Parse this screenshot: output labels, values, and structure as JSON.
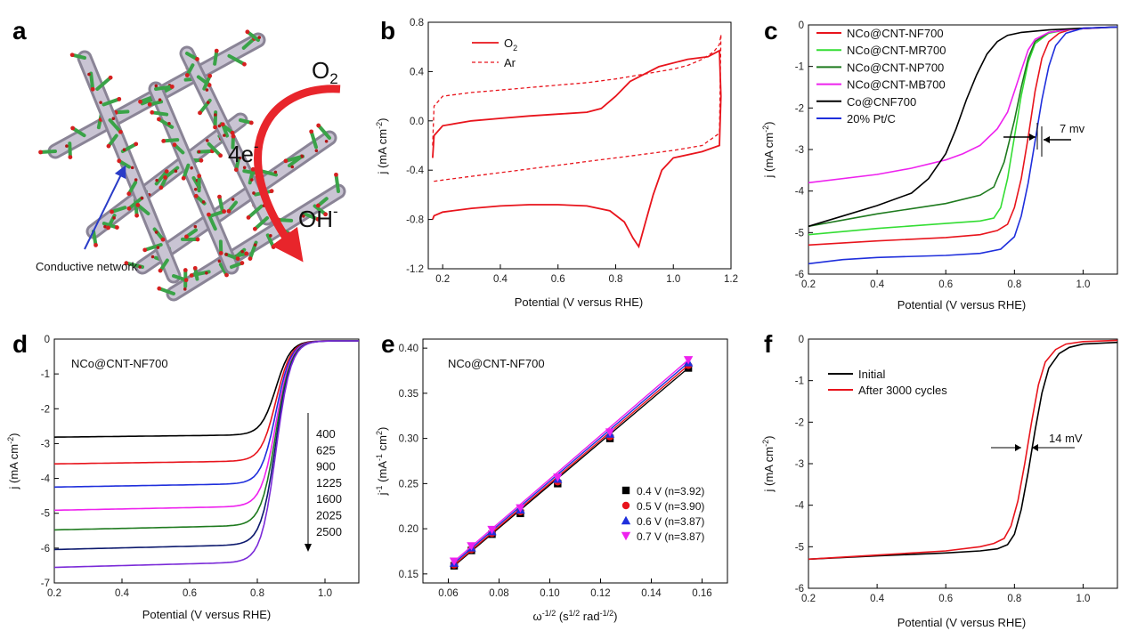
{
  "schematic": {
    "letter": "a",
    "o2_label": "O",
    "o2_sub": "2",
    "electrons_label": "4e",
    "electrons_sup": "-",
    "product_label": "OH",
    "product_sup": "-",
    "network_label": "Conductive network"
  },
  "chart_data": [
    {
      "panel": "b",
      "type": "line",
      "xlabel": "Potential (V versus RHE)",
      "ylabel": "j (mA cm",
      "ylabel_sup": "-2",
      "ylabel_end": ")",
      "xlim": [
        0.15,
        1.2
      ],
      "ylim": [
        -1.2,
        0.8
      ],
      "xticks": [
        0.2,
        0.4,
        0.6,
        0.8,
        1.0,
        1.2
      ],
      "xtick_labels": [
        "0.2",
        "0.4",
        "0.6",
        "0.8",
        "1.0",
        "1.2"
      ],
      "yticks": [
        -1.2,
        -0.8,
        -0.4,
        0.0,
        0.4,
        0.8
      ],
      "ytick_labels": [
        "-1.2",
        "-0.8",
        "-0.4",
        "0.0",
        "0.4",
        "0.8"
      ],
      "legend_position": "top-left",
      "series": [
        {
          "name": "O",
          "name_sub": "2",
          "color": "#e8141c",
          "style": "solid",
          "x": [
            0.165,
            0.17,
            0.2,
            0.3,
            0.4,
            0.5,
            0.6,
            0.7,
            0.75,
            0.8,
            0.85,
            0.95,
            1.05,
            1.12,
            1.16,
            1.165,
            1.16,
            1.1,
            1.0,
            0.96,
            0.93,
            0.9,
            0.88,
            0.86,
            0.83,
            0.78,
            0.7,
            0.6,
            0.5,
            0.4,
            0.3,
            0.2,
            0.17,
            0.165
          ],
          "y": [
            -0.3,
            -0.12,
            -0.04,
            0.0,
            0.02,
            0.04,
            0.055,
            0.07,
            0.1,
            0.2,
            0.32,
            0.44,
            0.5,
            0.52,
            0.57,
            0.2,
            -0.2,
            -0.25,
            -0.3,
            -0.4,
            -0.6,
            -0.85,
            -1.02,
            -0.95,
            -0.82,
            -0.73,
            -0.69,
            -0.68,
            -0.68,
            -0.69,
            -0.71,
            -0.74,
            -0.77,
            -0.8
          ]
        },
        {
          "name": "Ar",
          "color": "#e8141c",
          "style": "dashed",
          "x": [
            0.165,
            0.17,
            0.2,
            0.3,
            0.4,
            0.5,
            0.6,
            0.7,
            0.8,
            0.9,
            1.0,
            1.05,
            1.1,
            1.14,
            1.16,
            1.165,
            1.16,
            1.1,
            1.0,
            0.9,
            0.8,
            0.7,
            0.6,
            0.5,
            0.4,
            0.3,
            0.2,
            0.17,
            0.165
          ],
          "y": [
            -0.2,
            0.12,
            0.2,
            0.23,
            0.25,
            0.27,
            0.29,
            0.31,
            0.34,
            0.38,
            0.42,
            0.45,
            0.5,
            0.56,
            0.62,
            0.7,
            -0.1,
            -0.2,
            -0.24,
            -0.27,
            -0.3,
            -0.33,
            -0.36,
            -0.39,
            -0.42,
            -0.45,
            -0.48,
            -0.49,
            -0.5
          ]
        }
      ]
    },
    {
      "panel": "c",
      "type": "line",
      "xlabel": "Potential (V versus RHE)",
      "ylabel": "j (mA cm",
      "ylabel_sup": "-2",
      "ylabel_end": ")",
      "xlim": [
        0.2,
        1.1
      ],
      "ylim": [
        -6,
        0
      ],
      "xticks": [
        0.2,
        0.4,
        0.6,
        0.8,
        1.0
      ],
      "xtick_labels": [
        "0.2",
        "0.4",
        "0.6",
        "0.8",
        "1.0"
      ],
      "yticks": [
        -6,
        -5,
        -4,
        -3,
        -2,
        -1,
        0
      ],
      "ytick_labels": [
        "-6",
        "-5",
        "-4",
        "-3",
        "-2",
        "-1",
        "0"
      ],
      "legend_position": "top-left",
      "annotation": "7 mv",
      "series": [
        {
          "name": "NCo@CNT-NF700",
          "color": "#e8141c",
          "x": [
            0.2,
            0.4,
            0.6,
            0.7,
            0.75,
            0.78,
            0.8,
            0.82,
            0.84,
            0.86,
            0.88,
            0.9,
            0.93,
            0.96,
            1.0,
            1.1
          ],
          "y": [
            -5.3,
            -5.2,
            -5.12,
            -5.05,
            -4.95,
            -4.8,
            -4.4,
            -3.7,
            -2.7,
            -1.6,
            -0.8,
            -0.4,
            -0.2,
            -0.12,
            -0.08,
            -0.05
          ]
        },
        {
          "name": "NCo@CNT-MR700",
          "color": "#33dd33",
          "x": [
            0.2,
            0.4,
            0.6,
            0.7,
            0.74,
            0.76,
            0.78,
            0.8,
            0.82,
            0.84,
            0.86,
            0.9,
            0.95,
            1.0,
            1.1
          ],
          "y": [
            -5.05,
            -4.9,
            -4.78,
            -4.72,
            -4.65,
            -4.4,
            -3.7,
            -2.7,
            -1.7,
            -0.9,
            -0.45,
            -0.2,
            -0.12,
            -0.09,
            -0.05
          ]
        },
        {
          "name": "NCo@CNT-NP700",
          "color": "#1e7a1e",
          "x": [
            0.2,
            0.4,
            0.6,
            0.7,
            0.74,
            0.77,
            0.8,
            0.82,
            0.84,
            0.86,
            0.9,
            0.95,
            1.0,
            1.1
          ],
          "y": [
            -4.85,
            -4.55,
            -4.3,
            -4.1,
            -3.9,
            -3.3,
            -2.3,
            -1.5,
            -0.8,
            -0.4,
            -0.18,
            -0.12,
            -0.09,
            -0.05
          ]
        },
        {
          "name": "NCo@CNT-MB700",
          "color": "#ee22ee",
          "x": [
            0.2,
            0.4,
            0.5,
            0.6,
            0.65,
            0.7,
            0.75,
            0.78,
            0.8,
            0.82,
            0.84,
            0.86,
            0.9,
            0.95,
            1.0,
            1.1
          ],
          "y": [
            -3.8,
            -3.6,
            -3.45,
            -3.25,
            -3.1,
            -2.9,
            -2.5,
            -2.1,
            -1.6,
            -1.1,
            -0.6,
            -0.35,
            -0.18,
            -0.12,
            -0.09,
            -0.05
          ]
        },
        {
          "name": "Co@CNF700",
          "color": "#000000",
          "x": [
            0.2,
            0.3,
            0.4,
            0.5,
            0.55,
            0.6,
            0.63,
            0.66,
            0.69,
            0.72,
            0.75,
            0.78,
            0.82,
            0.9,
            1.0,
            1.1
          ],
          "y": [
            -4.85,
            -4.6,
            -4.35,
            -4.05,
            -3.7,
            -3.1,
            -2.5,
            -1.8,
            -1.2,
            -0.7,
            -0.4,
            -0.25,
            -0.18,
            -0.12,
            -0.08,
            -0.05
          ]
        },
        {
          "name": "20% Pt/C",
          "color": "#1f2fdc",
          "x": [
            0.2,
            0.3,
            0.4,
            0.6,
            0.7,
            0.76,
            0.8,
            0.82,
            0.84,
            0.86,
            0.88,
            0.9,
            0.92,
            0.95,
            1.0,
            1.1
          ],
          "y": [
            -5.75,
            -5.65,
            -5.6,
            -5.55,
            -5.5,
            -5.4,
            -5.1,
            -4.6,
            -3.8,
            -2.8,
            -1.8,
            -1.0,
            -0.5,
            -0.2,
            -0.08,
            -0.05
          ]
        }
      ]
    },
    {
      "panel": "d",
      "type": "line",
      "xlabel": "Potential (V versus RHE)",
      "ylabel": "j (mA cm",
      "ylabel_sup": "-2",
      "ylabel_end": ")",
      "xlim": [
        0.2,
        1.1
      ],
      "ylim": [
        -7,
        0
      ],
      "xticks": [
        0.2,
        0.4,
        0.6,
        0.8,
        1.0
      ],
      "xtick_labels": [
        "0.2",
        "0.4",
        "0.6",
        "0.8",
        "1.0"
      ],
      "yticks": [
        -7,
        -6,
        -5,
        -4,
        -3,
        -2,
        -1,
        0
      ],
      "ytick_labels": [
        "-7",
        "-6",
        "-5",
        "-4",
        "-3",
        "-2",
        "-1",
        "0"
      ],
      "inset_title": "NCo@CNT-NF700",
      "rpm_labels": [
        "400",
        "625",
        "900",
        "1225",
        "1600",
        "2025",
        "2500"
      ],
      "series": [
        {
          "name": "400",
          "color": "#000000",
          "limit": -2.7
        },
        {
          "name": "625",
          "color": "#e8141c",
          "limit": -3.45
        },
        {
          "name": "900",
          "color": "#1f2fdc",
          "limit": -4.1
        },
        {
          "name": "1225",
          "color": "#ee22ee",
          "limit": -4.75
        },
        {
          "name": "1600",
          "color": "#1e7a1e",
          "limit": -5.3
        },
        {
          "name": "2025",
          "color": "#0d1a6e",
          "limit": -5.85
        },
        {
          "name": "2500",
          "color": "#7a2ad8",
          "limit": -6.35
        }
      ]
    },
    {
      "panel": "e",
      "type": "scatter",
      "xlabel": "ω",
      "xlabel_sup": "-1/2",
      "xlabel_mid": " (s",
      "xlabel_sup2": "1/2",
      "xlabel_mid2": " rad",
      "xlabel_sup3": "-1/2",
      "xlabel_end": ")",
      "ylabel": "j",
      "ylabel_sup": "-1",
      "ylabel_mid": " (mA",
      "ylabel_sup2": "-1",
      "ylabel_mid2": " cm",
      "ylabel_sup3": "2",
      "ylabel_end": ")",
      "xlim": [
        0.05,
        0.17
      ],
      "ylim": [
        0.14,
        0.41
      ],
      "xticks": [
        0.06,
        0.08,
        0.1,
        0.12,
        0.14,
        0.16
      ],
      "xtick_labels": [
        "0.06",
        "0.08",
        "0.10",
        "0.12",
        "0.14",
        "0.16"
      ],
      "yticks": [
        0.15,
        0.2,
        0.25,
        0.3,
        0.35,
        0.4
      ],
      "ytick_labels": [
        "0.15",
        "0.20",
        "0.25",
        "0.30",
        "0.35",
        "0.40"
      ],
      "inset_title": "NCo@CNT-NF700",
      "legend_position": "bottom-right",
      "x": [
        0.0623,
        0.0691,
        0.0772,
        0.0884,
        0.1031,
        0.1237,
        0.1546
      ],
      "series": [
        {
          "name": "0.4 V (n=3.92)",
          "color": "#000000",
          "marker": "square",
          "y": [
            0.159,
            0.176,
            0.194,
            0.217,
            0.25,
            0.3,
            0.378
          ]
        },
        {
          "name": "0.5 V (n=3.90)",
          "color": "#e8141c",
          "marker": "circle",
          "y": [
            0.16,
            0.177,
            0.195,
            0.219,
            0.252,
            0.302,
            0.381
          ]
        },
        {
          "name": "0.6 V (n=3.87)",
          "color": "#1f2fdc",
          "marker": "triangle-up",
          "y": [
            0.162,
            0.179,
            0.197,
            0.221,
            0.255,
            0.305,
            0.384
          ]
        },
        {
          "name": "0.7 V (n=3.87)",
          "color": "#ee22ee",
          "marker": "triangle-down",
          "y": [
            0.164,
            0.181,
            0.199,
            0.223,
            0.257,
            0.307,
            0.387
          ]
        }
      ]
    },
    {
      "panel": "f",
      "type": "line",
      "xlabel": "Potential (V versus RHE)",
      "ylabel": "j (mA cm",
      "ylabel_sup": "-2",
      "ylabel_end": ")",
      "xlim": [
        0.2,
        1.1
      ],
      "ylim": [
        -6,
        0
      ],
      "xticks": [
        0.2,
        0.4,
        0.6,
        0.8,
        1.0
      ],
      "xtick_labels": [
        "0.2",
        "0.4",
        "0.6",
        "0.8",
        "1.0"
      ],
      "yticks": [
        -6,
        -5,
        -4,
        -3,
        -2,
        -1,
        0
      ],
      "ytick_labels": [
        "-6",
        "-5",
        "-4",
        "-3",
        "-2",
        "-1",
        "0"
      ],
      "legend_position": "top-left",
      "annotation": "14 mV",
      "series": [
        {
          "name": "Initial",
          "color": "#000000",
          "x": [
            0.2,
            0.4,
            0.6,
            0.7,
            0.75,
            0.78,
            0.8,
            0.82,
            0.84,
            0.86,
            0.88,
            0.9,
            0.93,
            0.96,
            1.0,
            1.1
          ],
          "y": [
            -5.3,
            -5.22,
            -5.15,
            -5.1,
            -5.05,
            -4.95,
            -4.7,
            -4.1,
            -3.2,
            -2.2,
            -1.3,
            -0.7,
            -0.35,
            -0.2,
            -0.12,
            -0.08
          ]
        },
        {
          "name": "After 3000 cycles",
          "color": "#e8141c",
          "x": [
            0.2,
            0.4,
            0.6,
            0.7,
            0.74,
            0.77,
            0.79,
            0.81,
            0.83,
            0.85,
            0.87,
            0.89,
            0.92,
            0.95,
            1.0,
            1.1
          ],
          "y": [
            -5.3,
            -5.2,
            -5.1,
            -5.0,
            -4.92,
            -4.8,
            -4.5,
            -3.9,
            -3.0,
            -2.0,
            -1.1,
            -0.55,
            -0.25,
            -0.12,
            -0.06,
            -0.03
          ]
        }
      ]
    }
  ]
}
